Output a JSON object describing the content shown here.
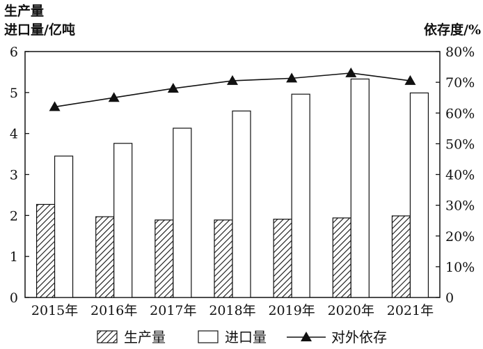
{
  "chart_data": {
    "type": "bar",
    "categories": [
      "2015年",
      "2016年",
      "2017年",
      "2018年",
      "2019年",
      "2020年",
      "2021年"
    ],
    "series": [
      {
        "name": "生产量",
        "kind": "bar",
        "pattern": "hatched",
        "axis": "left",
        "values": [
          2.27,
          1.97,
          1.89,
          1.89,
          1.91,
          1.94,
          1.99
        ]
      },
      {
        "name": "进口量",
        "kind": "bar",
        "pattern": "open",
        "axis": "left",
        "values": [
          3.45,
          3.76,
          4.13,
          4.55,
          4.96,
          5.33,
          4.99
        ]
      },
      {
        "name": "对外依存",
        "kind": "line",
        "marker": "triangle",
        "axis": "right",
        "values": [
          62,
          65,
          68,
          70.5,
          71.3,
          73,
          70.5
        ]
      }
    ],
    "y_left": {
      "label_line1": "生产量",
      "label_line2": "进口量/亿吨",
      "range": [
        0,
        6
      ],
      "ticks": [
        "0",
        "1",
        "2",
        "3",
        "4",
        "5",
        "6"
      ]
    },
    "y_right": {
      "label": "依存度/%",
      "range": [
        0,
        80
      ],
      "ticks": [
        "0",
        "10%",
        "20%",
        "30%",
        "40%",
        "50%",
        "60%",
        "70%",
        "80%"
      ]
    },
    "legend_position": "bottom",
    "grid": false
  },
  "legend": {
    "items": [
      {
        "label": "生产量",
        "swatch": "hatched"
      },
      {
        "label": "进口量",
        "swatch": "open"
      },
      {
        "label": "对外依存",
        "swatch": "triangle-line"
      }
    ]
  },
  "colors": {
    "ink": "#111111",
    "fill": "#ffffff"
  }
}
